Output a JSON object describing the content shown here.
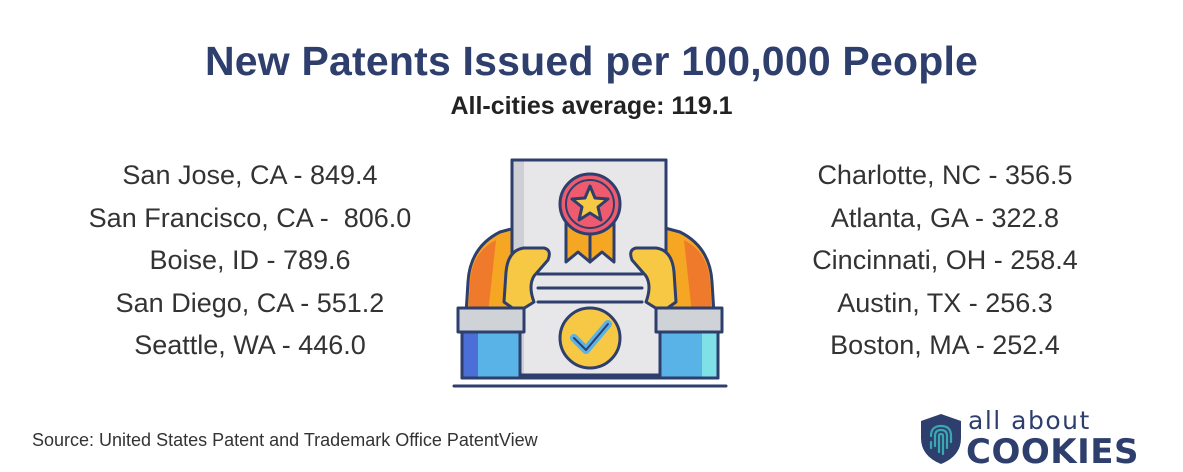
{
  "title": "New Patents Issued per 100,000 People",
  "subtitle": "All-cities average: 119.1",
  "left_cities": [
    "San Jose, CA - 849.4",
    "San Francisco, CA -  806.0",
    "Boise, ID - 789.6",
    "San Diego, CA - 551.2",
    "Seattle, WA - 446.0"
  ],
  "right_cities": [
    "Charlotte, NC - 356.5",
    "Atlanta, GA - 322.8",
    "Cincinnati, OH - 258.4",
    "Austin, TX - 256.3",
    "Boston, MA - 252.4"
  ],
  "source": "Source: United States Patent and Trademark Office PatentView",
  "logo": {
    "line1": "all about",
    "line2": "COOKIES"
  },
  "illustration": {
    "icon": "certificate-award-icon"
  },
  "colors": {
    "title": "#2e3f6e",
    "brand": "#2e3f6e",
    "teal": "#3aa8b0",
    "badge_red": "#ef5b6e",
    "star_yellow": "#f7c844",
    "sleeve_blue": "#5ab3e6"
  }
}
